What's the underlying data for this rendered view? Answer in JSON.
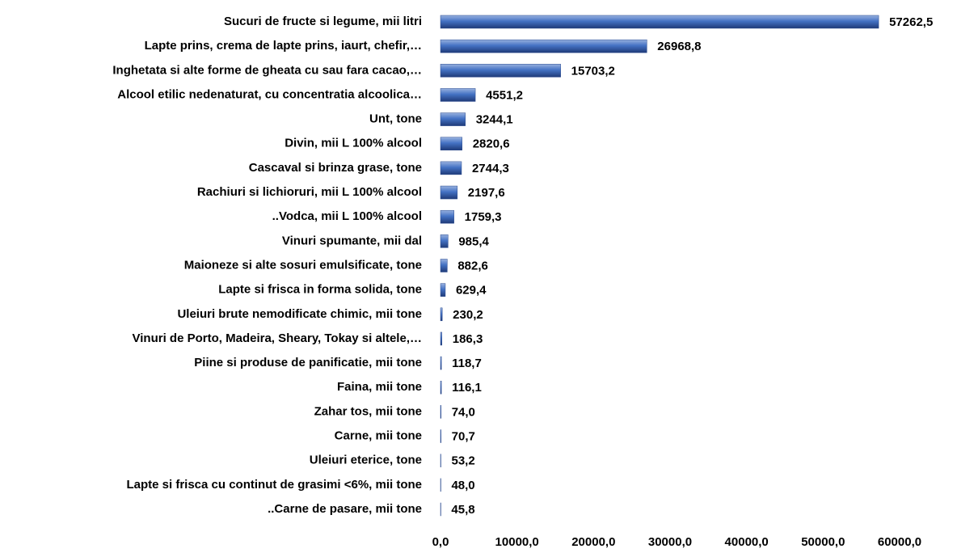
{
  "chart_data": {
    "type": "bar",
    "orientation": "horizontal",
    "color": "#4472c4",
    "categories": [
      "Sucuri de fructe si legume, mii litri",
      "Lapte prins, crema de lapte prins, iaurt, chefir,…",
      "Inghetata si alte forme de gheata cu sau fara cacao,…",
      "Alcool etilic nedenaturat, cu concentratia alcoolica…",
      "Unt, tone",
      "Divin, mii L 100% alcool",
      "Cascaval si brinza grase, tone",
      "Rachiuri si lichioruri, mii L 100% alcool",
      "..Vodca, mii L 100% alcool",
      "Vinuri spumante, mii dal",
      "Maioneze si alte sosuri emulsificate, tone",
      "Lapte si frisca in forma solida, tone",
      "Uleiuri brute nemodificate chimic, mii tone",
      "Vinuri de Porto, Madeira, Sheary, Tokay si altele,…",
      "Piine si produse de panificatie, mii tone",
      "Faina, mii tone",
      "Zahar tos, mii tone",
      "Carne, mii tone",
      "Uleiuri eterice, tone",
      "Lapte si frisca cu continut de grasimi <6%, mii tone",
      "..Carne de pasare, mii tone"
    ],
    "values": [
      57262.5,
      26968.8,
      15703.2,
      4551.2,
      3244.1,
      2820.6,
      2744.3,
      2197.6,
      1759.3,
      985.4,
      882.6,
      629.4,
      230.2,
      186.3,
      118.7,
      116.1,
      74.0,
      70.7,
      53.2,
      48.0,
      45.8
    ],
    "value_labels": [
      "57262,5",
      "26968,8",
      "15703,2",
      "4551,2",
      "3244,1",
      "2820,6",
      "2744,3",
      "2197,6",
      "1759,3",
      "985,4",
      "882,6",
      "629,4",
      "230,2",
      "186,3",
      "118,7",
      "116,1",
      "74,0",
      "70,7",
      "53,2",
      "48,0",
      "45,8"
    ],
    "xlim": [
      0,
      60000
    ],
    "xticks": [
      {
        "value": 0,
        "label": "0,0"
      },
      {
        "value": 10000,
        "label": "10000,0"
      },
      {
        "value": 20000,
        "label": "20000,0"
      },
      {
        "value": 30000,
        "label": "30000,0"
      },
      {
        "value": 40000,
        "label": "40000,0"
      },
      {
        "value": 50000,
        "label": "50000,0"
      },
      {
        "value": 60000,
        "label": "60000,0"
      }
    ],
    "grid": false
  }
}
